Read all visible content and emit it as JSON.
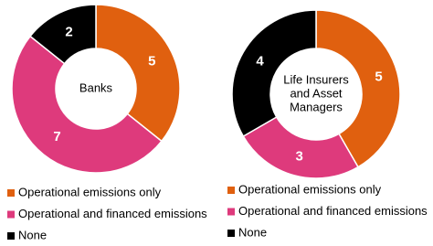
{
  "chart_data": [
    {
      "type": "pie",
      "center_label": [
        "Banks"
      ],
      "categories": [
        "Operational emissions only",
        "Operational and financed emissions",
        "None"
      ],
      "values": [
        5,
        7,
        2
      ],
      "colors": [
        "#e0600f",
        "#de3a7c",
        "#000000"
      ]
    },
    {
      "type": "pie",
      "center_label": [
        "Life Insurers",
        "and Asset",
        "Managers"
      ],
      "categories": [
        "Operational emissions only",
        "Operational and financed emissions",
        "None"
      ],
      "values": [
        5,
        3,
        4
      ],
      "colors": [
        "#e0600f",
        "#de3a7c",
        "#000000"
      ]
    }
  ]
}
